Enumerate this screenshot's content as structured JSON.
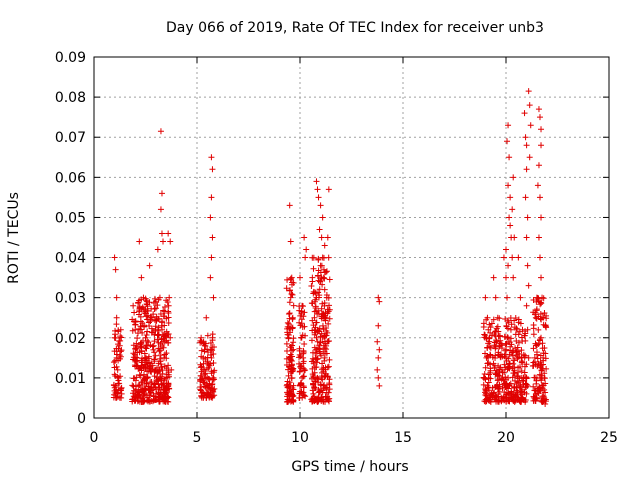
{
  "chart_data": {
    "type": "scatter",
    "title": "Day 066 of 2019, Rate Of TEC Index for receiver unb3",
    "xlabel": "GPS time / hours",
    "ylabel": "ROTI / TECUs",
    "xlim": [
      0,
      25
    ],
    "ylim": [
      0,
      0.09
    ],
    "xticks": [
      0,
      5,
      10,
      15,
      20,
      25
    ],
    "xtick_labels": [
      "0",
      "5",
      "10",
      "15",
      "20",
      "25"
    ],
    "yticks": [
      0,
      0.01,
      0.02,
      0.03,
      0.04,
      0.05,
      0.06,
      0.07,
      0.08,
      0.09
    ],
    "ytick_labels": [
      "0",
      "0.01",
      "0.02",
      "0.03",
      "0.04",
      "0.05",
      "0.06",
      "0.07",
      "0.08",
      "0.09"
    ],
    "grid": true,
    "marker": "+",
    "color": "#e00000",
    "series": [
      {
        "name": "ROTI",
        "points": [
          [
            1.0,
            0.04
          ],
          [
            1.05,
            0.037
          ],
          [
            1.1,
            0.03
          ],
          [
            1.0,
            0.02
          ],
          [
            1.1,
            0.015
          ],
          [
            1.15,
            0.012
          ],
          [
            1.2,
            0.01
          ],
          [
            1.05,
            0.008
          ],
          [
            1.2,
            0.007
          ],
          [
            1.3,
            0.022
          ],
          [
            1.25,
            0.018
          ],
          [
            1.1,
            0.025
          ],
          [
            1.9,
            0.028
          ],
          [
            2.0,
            0.022
          ],
          [
            2.1,
            0.015
          ],
          [
            2.2,
            0.044
          ],
          [
            2.3,
            0.035
          ],
          [
            2.4,
            0.03
          ],
          [
            2.5,
            0.02
          ],
          [
            2.6,
            0.01
          ],
          [
            2.7,
            0.038
          ],
          [
            2.8,
            0.025
          ],
          [
            2.9,
            0.018
          ],
          [
            3.0,
            0.012
          ],
          [
            3.1,
            0.042
          ],
          [
            3.2,
            0.03
          ],
          [
            3.3,
            0.022
          ],
          [
            3.4,
            0.015
          ],
          [
            3.5,
            0.008
          ],
          [
            2.15,
            0.008
          ],
          [
            2.45,
            0.006
          ],
          [
            2.85,
            0.007
          ],
          [
            3.25,
            0.007
          ],
          [
            3.25,
            0.0715
          ],
          [
            3.3,
            0.056
          ],
          [
            3.25,
            0.052
          ],
          [
            3.3,
            0.046
          ],
          [
            3.35,
            0.044
          ],
          [
            3.6,
            0.046
          ],
          [
            3.7,
            0.044
          ],
          [
            3.65,
            0.03
          ],
          [
            3.7,
            0.02
          ],
          [
            3.75,
            0.012
          ],
          [
            3.6,
            0.008
          ],
          [
            5.2,
            0.02
          ],
          [
            5.3,
            0.015
          ],
          [
            5.4,
            0.01
          ],
          [
            5.5,
            0.008
          ],
          [
            5.45,
            0.025
          ],
          [
            5.35,
            0.012
          ],
          [
            5.7,
            0.065
          ],
          [
            5.75,
            0.062
          ],
          [
            5.7,
            0.055
          ],
          [
            5.65,
            0.05
          ],
          [
            5.75,
            0.045
          ],
          [
            5.7,
            0.04
          ],
          [
            5.65,
            0.035
          ],
          [
            5.8,
            0.03
          ],
          [
            5.75,
            0.02
          ],
          [
            5.7,
            0.015
          ],
          [
            5.8,
            0.01
          ],
          [
            5.6,
            0.008
          ],
          [
            9.5,
            0.053
          ],
          [
            9.55,
            0.044
          ],
          [
            9.6,
            0.035
          ],
          [
            9.55,
            0.03
          ],
          [
            9.45,
            0.02
          ],
          [
            9.5,
            0.015
          ],
          [
            9.6,
            0.01
          ],
          [
            9.55,
            0.008
          ],
          [
            9.5,
            0.006
          ],
          [
            9.65,
            0.025
          ],
          [
            10.0,
            0.035
          ],
          [
            10.1,
            0.028
          ],
          [
            10.05,
            0.02
          ],
          [
            10.15,
            0.015
          ],
          [
            10.1,
            0.01
          ],
          [
            10.0,
            0.008
          ],
          [
            10.2,
            0.045
          ],
          [
            10.25,
            0.04
          ],
          [
            10.3,
            0.042
          ],
          [
            10.6,
            0.035
          ],
          [
            10.7,
            0.025
          ],
          [
            10.8,
            0.02
          ],
          [
            10.75,
            0.015
          ],
          [
            10.85,
            0.01
          ],
          [
            10.9,
            0.007
          ],
          [
            10.65,
            0.006
          ],
          [
            10.8,
            0.03
          ],
          [
            10.8,
            0.059
          ],
          [
            10.85,
            0.057
          ],
          [
            10.9,
            0.055
          ],
          [
            11.0,
            0.053
          ],
          [
            11.1,
            0.05
          ],
          [
            10.95,
            0.047
          ],
          [
            11.05,
            0.045
          ],
          [
            11.2,
            0.043
          ],
          [
            11.1,
            0.04
          ],
          [
            11.0,
            0.038
          ],
          [
            11.15,
            0.035
          ],
          [
            11.2,
            0.032
          ],
          [
            11.3,
            0.03
          ],
          [
            11.25,
            0.025
          ],
          [
            11.1,
            0.02
          ],
          [
            11.2,
            0.015
          ],
          [
            11.05,
            0.01
          ],
          [
            11.15,
            0.008
          ],
          [
            11.4,
            0.057
          ],
          [
            11.35,
            0.045
          ],
          [
            13.8,
            0.03
          ],
          [
            13.85,
            0.029
          ],
          [
            13.8,
            0.023
          ],
          [
            13.75,
            0.019
          ],
          [
            13.85,
            0.017
          ],
          [
            13.8,
            0.015
          ],
          [
            13.75,
            0.012
          ],
          [
            13.8,
            0.01
          ],
          [
            13.85,
            0.008
          ],
          [
            19.0,
            0.03
          ],
          [
            19.1,
            0.025
          ],
          [
            19.2,
            0.02
          ],
          [
            19.05,
            0.015
          ],
          [
            19.15,
            0.01
          ],
          [
            19.1,
            0.008
          ],
          [
            19.3,
            0.006
          ],
          [
            19.4,
            0.035
          ],
          [
            19.5,
            0.03
          ],
          [
            19.6,
            0.025
          ],
          [
            19.7,
            0.018
          ],
          [
            19.8,
            0.012
          ],
          [
            19.55,
            0.008
          ],
          [
            19.9,
            0.04
          ],
          [
            20.0,
            0.042
          ],
          [
            20.1,
            0.038
          ],
          [
            20.0,
            0.035
          ],
          [
            20.05,
            0.03
          ],
          [
            20.1,
            0.02
          ],
          [
            20.0,
            0.015
          ],
          [
            20.1,
            0.01
          ],
          [
            20.15,
            0.008
          ],
          [
            20.1,
            0.073
          ],
          [
            20.05,
            0.069
          ],
          [
            20.15,
            0.065
          ],
          [
            20.1,
            0.058
          ],
          [
            20.2,
            0.055
          ],
          [
            20.15,
            0.05
          ],
          [
            20.2,
            0.048
          ],
          [
            20.25,
            0.045
          ],
          [
            20.3,
            0.04
          ],
          [
            20.35,
            0.06
          ],
          [
            20.3,
            0.052
          ],
          [
            20.4,
            0.045
          ],
          [
            20.35,
            0.035
          ],
          [
            20.6,
            0.04
          ],
          [
            20.7,
            0.03
          ],
          [
            20.8,
            0.022
          ],
          [
            20.75,
            0.015
          ],
          [
            20.85,
            0.01
          ],
          [
            20.7,
            0.008
          ],
          [
            20.9,
            0.076
          ],
          [
            20.95,
            0.07
          ],
          [
            21.0,
            0.068
          ],
          [
            21.0,
            0.062
          ],
          [
            20.95,
            0.055
          ],
          [
            21.05,
            0.05
          ],
          [
            21.0,
            0.045
          ],
          [
            21.05,
            0.038
          ],
          [
            21.1,
            0.033
          ],
          [
            21.0,
            0.028
          ],
          [
            21.05,
            0.022
          ],
          [
            21.1,
            0.015
          ],
          [
            21.0,
            0.01
          ],
          [
            21.05,
            0.008
          ],
          [
            21.1,
            0.0815
          ],
          [
            21.15,
            0.078
          ],
          [
            21.2,
            0.073
          ],
          [
            21.15,
            0.065
          ],
          [
            21.6,
            0.077
          ],
          [
            21.65,
            0.075
          ],
          [
            21.7,
            0.072
          ],
          [
            21.7,
            0.068
          ],
          [
            21.6,
            0.063
          ],
          [
            21.55,
            0.058
          ],
          [
            21.65,
            0.055
          ],
          [
            21.7,
            0.05
          ],
          [
            21.6,
            0.045
          ],
          [
            21.65,
            0.04
          ],
          [
            21.7,
            0.035
          ],
          [
            21.75,
            0.03
          ],
          [
            21.8,
            0.025
          ],
          [
            21.7,
            0.02
          ],
          [
            21.8,
            0.015
          ],
          [
            21.75,
            0.01
          ],
          [
            21.85,
            0.007
          ],
          [
            21.9,
            0.0035
          ],
          [
            21.5,
            0.03
          ],
          [
            21.45,
            0.025
          ],
          [
            21.4,
            0.015
          ],
          [
            21.5,
            0.01
          ]
        ],
        "clusters": [
          {
            "x": [
              0.95,
              1.35
            ],
            "y": [
              0.005,
              0.024
            ],
            "count": 55
          },
          {
            "x": [
              1.85,
              3.65
            ],
            "y": [
              0.004,
              0.03
            ],
            "count": 420
          },
          {
            "x": [
              5.15,
              5.85
            ],
            "y": [
              0.005,
              0.022
            ],
            "count": 110
          },
          {
            "x": [
              9.35,
              9.7
            ],
            "y": [
              0.004,
              0.035
            ],
            "count": 110
          },
          {
            "x": [
              9.95,
              10.25
            ],
            "y": [
              0.005,
              0.028
            ],
            "count": 60
          },
          {
            "x": [
              10.55,
              11.45
            ],
            "y": [
              0.004,
              0.04
            ],
            "count": 230
          },
          {
            "x": [
              18.9,
              21.0
            ],
            "y": [
              0.004,
              0.025
            ],
            "count": 360
          },
          {
            "x": [
              21.3,
              21.95
            ],
            "y": [
              0.004,
              0.03
            ],
            "count": 120
          }
        ]
      }
    ]
  }
}
